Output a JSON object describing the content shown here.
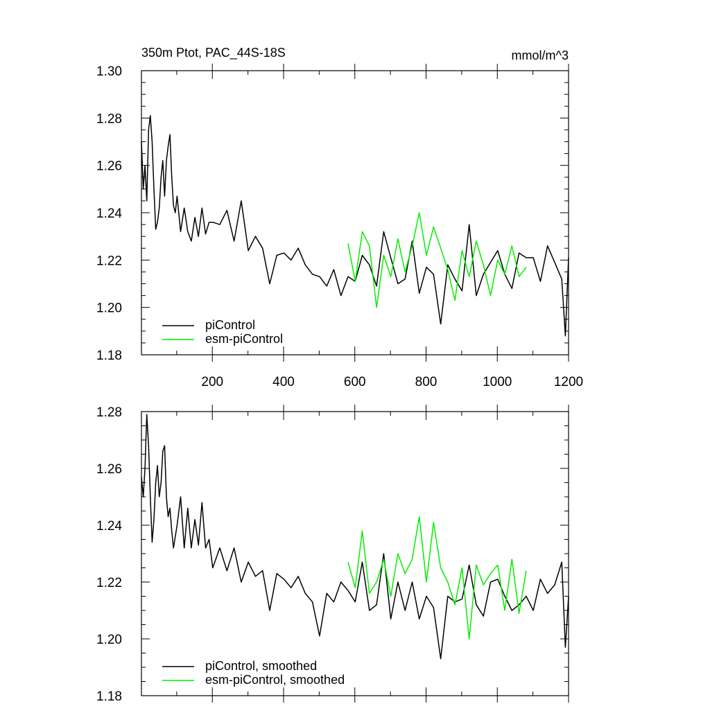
{
  "chart_data": [
    {
      "type": "line",
      "title": "350m Ptot, PAC_44S-18S",
      "units": "mmol/m^3",
      "xlabel": "",
      "ylabel": "",
      "xlim": [
        1,
        1200
      ],
      "ylim": [
        1.18,
        1.3
      ],
      "xticks": [
        200,
        400,
        600,
        800,
        1000,
        1200
      ],
      "xtick_labels": [
        "200",
        "400",
        "600",
        "800",
        "1000",
        "1200"
      ],
      "yticks": [
        1.18,
        1.2,
        1.22,
        1.24,
        1.26,
        1.28,
        1.3
      ],
      "ytick_labels": [
        "1.18",
        "1.20",
        "1.22",
        "1.24",
        "1.26",
        "1.28",
        "1.30"
      ],
      "legend_position": "bottom-left",
      "series": [
        {
          "name": "piControl",
          "color": "#000000",
          "x": [
            1,
            6,
            11,
            16,
            21,
            26,
            31,
            36,
            41,
            46,
            51,
            56,
            61,
            66,
            71,
            76,
            81,
            86,
            91,
            96,
            101,
            111,
            121,
            131,
            141,
            151,
            161,
            171,
            181,
            191,
            201,
            221,
            241,
            261,
            281,
            301,
            321,
            341,
            361,
            381,
            401,
            421,
            441,
            461,
            481,
            501,
            521,
            541,
            561,
            581,
            601,
            621,
            641,
            661,
            681,
            701,
            721,
            741,
            761,
            781,
            801,
            821,
            841,
            861,
            881,
            901,
            921,
            941,
            961,
            981,
            1001,
            1021,
            1041,
            1061,
            1081,
            1101,
            1121,
            1141,
            1161,
            1181,
            1191,
            1200
          ],
          "values": [
            1.27,
            1.25,
            1.26,
            1.245,
            1.275,
            1.281,
            1.27,
            1.25,
            1.233,
            1.236,
            1.242,
            1.255,
            1.262,
            1.247,
            1.262,
            1.268,
            1.273,
            1.255,
            1.243,
            1.24,
            1.247,
            1.232,
            1.242,
            1.232,
            1.228,
            1.238,
            1.23,
            1.242,
            1.231,
            1.236,
            1.236,
            1.235,
            1.241,
            1.228,
            1.245,
            1.224,
            1.23,
            1.225,
            1.21,
            1.222,
            1.223,
            1.22,
            1.225,
            1.218,
            1.214,
            1.213,
            1.209,
            1.216,
            1.205,
            1.213,
            1.211,
            1.222,
            1.218,
            1.209,
            1.232,
            1.221,
            1.21,
            1.212,
            1.228,
            1.206,
            1.217,
            1.214,
            1.193,
            1.218,
            1.212,
            1.207,
            1.235,
            1.205,
            1.214,
            1.219,
            1.224,
            1.214,
            1.208,
            1.223,
            1.221,
            1.221,
            1.211,
            1.226,
            1.219,
            1.212,
            1.188,
            1.221
          ]
        },
        {
          "name": "esm-piControl",
          "color": "#00ee00",
          "x": [
            581,
            601,
            621,
            641,
            661,
            681,
            701,
            721,
            741,
            761,
            781,
            801,
            821,
            841,
            861,
            881,
            901,
            921,
            941,
            961,
            981,
            1001,
            1021,
            1041,
            1061,
            1081
          ],
          "values": [
            1.227,
            1.211,
            1.232,
            1.226,
            1.2,
            1.222,
            1.213,
            1.229,
            1.215,
            1.226,
            1.24,
            1.222,
            1.234,
            1.225,
            1.216,
            1.203,
            1.224,
            1.213,
            1.228,
            1.218,
            1.205,
            1.22,
            1.214,
            1.226,
            1.213,
            1.217
          ]
        }
      ]
    },
    {
      "type": "line",
      "title": "",
      "xlabel": "",
      "ylabel": "",
      "xlim": [
        1,
        1200
      ],
      "ylim": [
        1.18,
        1.28
      ],
      "xticks": [
        200,
        400,
        600,
        800,
        1000,
        1200
      ],
      "yticks": [
        1.18,
        1.2,
        1.22,
        1.24,
        1.26,
        1.28
      ],
      "ytick_labels": [
        "1.18",
        "1.20",
        "1.22",
        "1.24",
        "1.26",
        "1.28"
      ],
      "legend_position": "bottom-left",
      "series": [
        {
          "name": "piControl, smoothed",
          "color": "#000000",
          "x": [
            1,
            6,
            11,
            16,
            21,
            26,
            31,
            36,
            41,
            46,
            51,
            56,
            61,
            66,
            71,
            76,
            81,
            86,
            91,
            96,
            101,
            111,
            121,
            131,
            141,
            151,
            161,
            171,
            181,
            191,
            201,
            221,
            241,
            261,
            281,
            301,
            321,
            341,
            361,
            381,
            401,
            421,
            441,
            461,
            481,
            501,
            521,
            541,
            561,
            581,
            601,
            621,
            641,
            661,
            681,
            701,
            721,
            741,
            761,
            781,
            801,
            821,
            841,
            861,
            881,
            901,
            921,
            941,
            961,
            981,
            1001,
            1021,
            1041,
            1061,
            1081,
            1101,
            1121,
            1141,
            1161,
            1181,
            1191,
            1200
          ],
          "values": [
            1.257,
            1.25,
            1.26,
            1.279,
            1.268,
            1.25,
            1.234,
            1.242,
            1.255,
            1.261,
            1.25,
            1.255,
            1.266,
            1.268,
            1.25,
            1.243,
            1.246,
            1.238,
            1.232,
            1.236,
            1.24,
            1.25,
            1.232,
            1.246,
            1.232,
            1.242,
            1.233,
            1.248,
            1.232,
            1.235,
            1.225,
            1.232,
            1.224,
            1.232,
            1.22,
            1.227,
            1.222,
            1.224,
            1.21,
            1.223,
            1.221,
            1.218,
            1.222,
            1.216,
            1.213,
            1.201,
            1.216,
            1.213,
            1.22,
            1.217,
            1.213,
            1.227,
            1.21,
            1.212,
            1.23,
            1.207,
            1.22,
            1.21,
            1.22,
            1.207,
            1.215,
            1.211,
            1.193,
            1.215,
            1.213,
            1.214,
            1.226,
            1.212,
            1.208,
            1.22,
            1.221,
            1.215,
            1.21,
            1.212,
            1.215,
            1.21,
            1.221,
            1.216,
            1.219,
            1.227,
            1.197,
            1.215
          ]
        },
        {
          "name": "esm-piControl, smoothed",
          "color": "#00ee00",
          "x": [
            581,
            601,
            621,
            641,
            661,
            681,
            701,
            721,
            741,
            761,
            781,
            801,
            821,
            841,
            861,
            881,
            901,
            921,
            941,
            961,
            981,
            1001,
            1021,
            1041,
            1061,
            1081
          ],
          "values": [
            1.227,
            1.218,
            1.238,
            1.216,
            1.22,
            1.228,
            1.215,
            1.23,
            1.223,
            1.228,
            1.243,
            1.22,
            1.241,
            1.225,
            1.22,
            1.212,
            1.225,
            1.2,
            1.226,
            1.219,
            1.223,
            1.226,
            1.21,
            1.228,
            1.209,
            1.224
          ]
        }
      ]
    }
  ]
}
